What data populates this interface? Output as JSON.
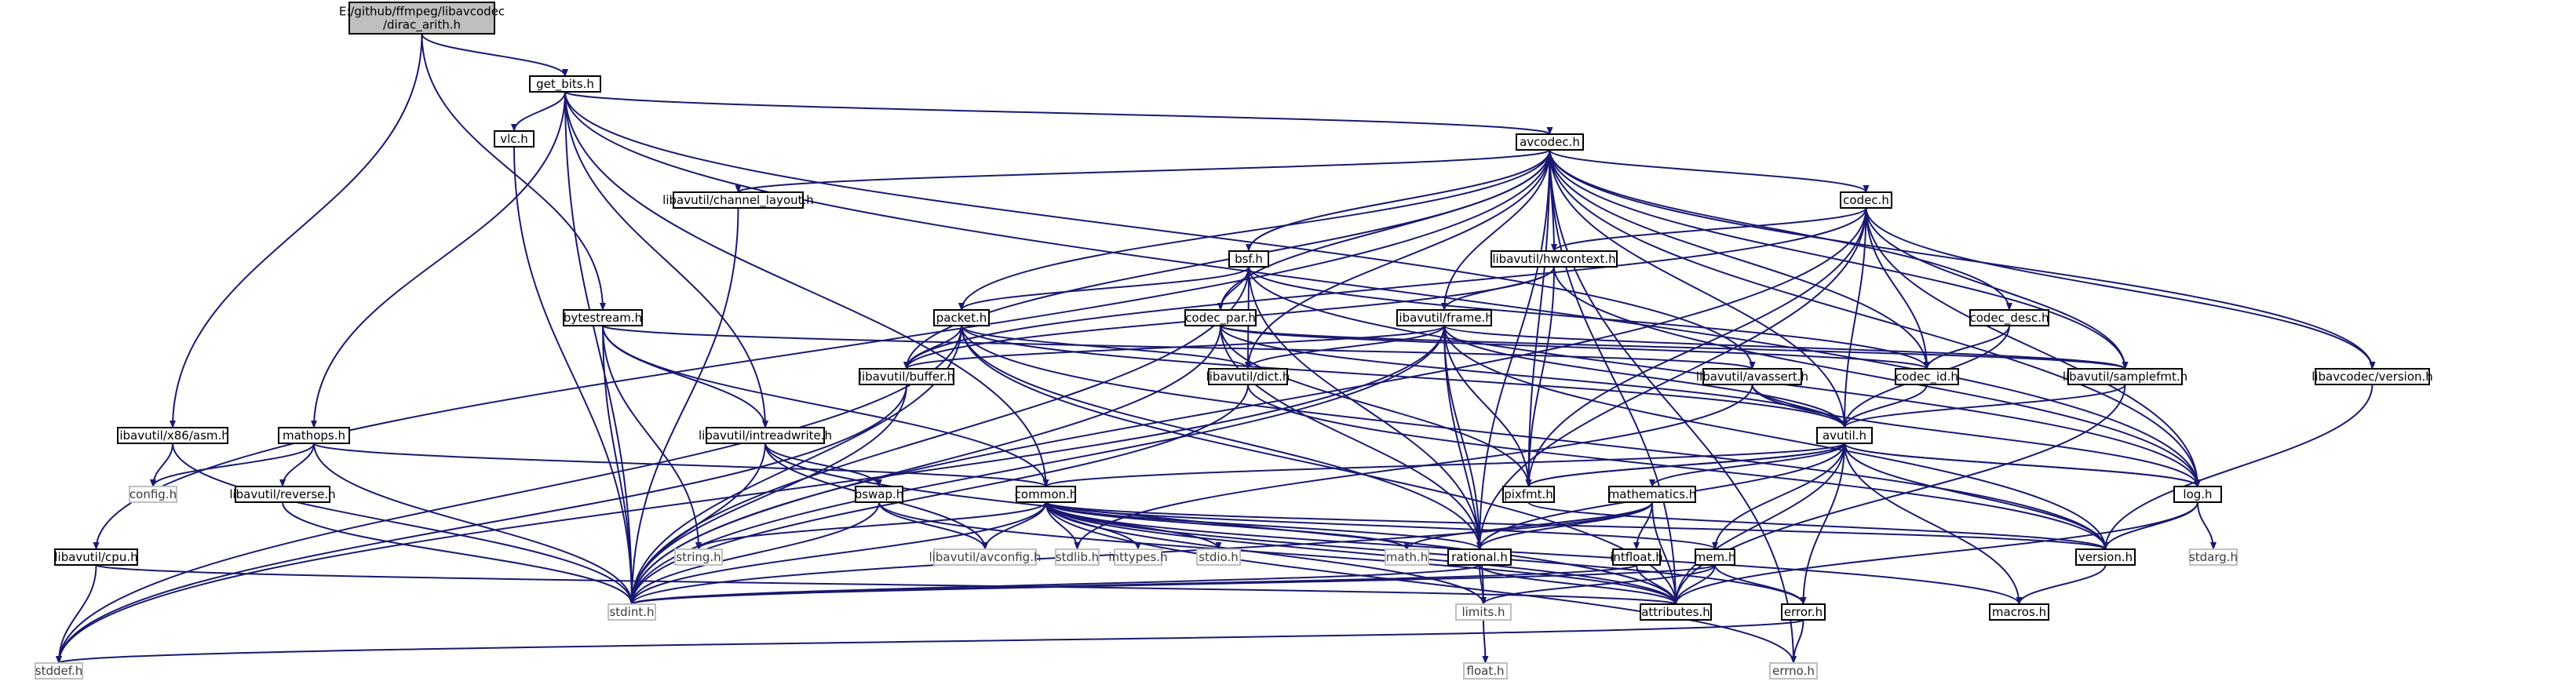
{
  "graph_title": "",
  "colors": {
    "edge": "#191970",
    "root_fill": "#bfbfbf",
    "node_border": "#000000",
    "system_border": "#bfbfbf"
  },
  "nodes": [
    {
      "id": "root",
      "lines": [
        "E:/github/ffmpeg/libavcodec",
        "/dirac_arith.h"
      ],
      "kind": "root"
    },
    {
      "id": "get_bits",
      "lines": [
        "get_bits.h"
      ]
    },
    {
      "id": "asm",
      "lines": [
        "libavutil/x86/asm.h"
      ]
    },
    {
      "id": "bytestream",
      "lines": [
        "bytestream.h"
      ]
    },
    {
      "id": "vlc",
      "lines": [
        "vlc.h"
      ]
    },
    {
      "id": "mathops",
      "lines": [
        "mathops.h"
      ]
    },
    {
      "id": "avcodec",
      "lines": [
        "avcodec.h"
      ]
    },
    {
      "id": "channel_layout",
      "lines": [
        "libavutil/channel_layout.h"
      ]
    },
    {
      "id": "codec",
      "lines": [
        "codec.h"
      ]
    },
    {
      "id": "bsf",
      "lines": [
        "bsf.h"
      ]
    },
    {
      "id": "hwcontext",
      "lines": [
        "libavutil/hwcontext.h"
      ]
    },
    {
      "id": "packet",
      "lines": [
        "packet.h"
      ]
    },
    {
      "id": "codec_par",
      "lines": [
        "codec_par.h"
      ]
    },
    {
      "id": "frame",
      "lines": [
        "libavutil/frame.h"
      ]
    },
    {
      "id": "codec_desc",
      "lines": [
        "codec_desc.h"
      ]
    },
    {
      "id": "buffer",
      "lines": [
        "libavutil/buffer.h"
      ]
    },
    {
      "id": "dict",
      "lines": [
        "libavutil/dict.h"
      ]
    },
    {
      "id": "avassert",
      "lines": [
        "libavutil/avassert.h"
      ]
    },
    {
      "id": "codec_id",
      "lines": [
        "codec_id.h"
      ]
    },
    {
      "id": "samplefmt",
      "lines": [
        "libavutil/samplefmt.h"
      ]
    },
    {
      "id": "lavc_version",
      "lines": [
        "libavcodec/version.h"
      ]
    },
    {
      "id": "intreadwrite",
      "lines": [
        "libavutil/intreadwrite.h"
      ]
    },
    {
      "id": "avutil",
      "lines": [
        "avutil.h"
      ]
    },
    {
      "id": "reverse",
      "lines": [
        "libavutil/reverse.h"
      ]
    },
    {
      "id": "bswap",
      "lines": [
        "bswap.h"
      ]
    },
    {
      "id": "common",
      "lines": [
        "common.h"
      ]
    },
    {
      "id": "pixfmt",
      "lines": [
        "pixfmt.h"
      ]
    },
    {
      "id": "mathematics",
      "lines": [
        "mathematics.h"
      ]
    },
    {
      "id": "log",
      "lines": [
        "log.h"
      ]
    },
    {
      "id": "cpu",
      "lines": [
        "libavutil/cpu.h"
      ]
    },
    {
      "id": "config",
      "lines": [
        "config.h"
      ],
      "kind": "sys"
    },
    {
      "id": "string",
      "lines": [
        "string.h"
      ],
      "kind": "sys"
    },
    {
      "id": "avconfig",
      "lines": [
        "libavutil/avconfig.h"
      ],
      "kind": "sys"
    },
    {
      "id": "stdlib",
      "lines": [
        "stdlib.h"
      ],
      "kind": "sys"
    },
    {
      "id": "inttypes",
      "lines": [
        "inttypes.h"
      ],
      "kind": "sys"
    },
    {
      "id": "stdio",
      "lines": [
        "stdio.h"
      ],
      "kind": "sys"
    },
    {
      "id": "math",
      "lines": [
        "math.h"
      ],
      "kind": "sys"
    },
    {
      "id": "rational",
      "lines": [
        "rational.h"
      ]
    },
    {
      "id": "intfloat",
      "lines": [
        "intfloat.h"
      ]
    },
    {
      "id": "mem",
      "lines": [
        "mem.h"
      ]
    },
    {
      "id": "version",
      "lines": [
        "version.h"
      ]
    },
    {
      "id": "stdarg",
      "lines": [
        "stdarg.h"
      ],
      "kind": "sys"
    },
    {
      "id": "stdint",
      "lines": [
        "stdint.h"
      ],
      "kind": "sys"
    },
    {
      "id": "limits",
      "lines": [
        "limits.h"
      ],
      "kind": "sys"
    },
    {
      "id": "attributes",
      "lines": [
        "attributes.h"
      ]
    },
    {
      "id": "error",
      "lines": [
        "error.h"
      ]
    },
    {
      "id": "macros",
      "lines": [
        "macros.h"
      ]
    },
    {
      "id": "float",
      "lines": [
        "float.h"
      ],
      "kind": "sys"
    },
    {
      "id": "stddef",
      "lines": [
        "stddef.h"
      ],
      "kind": "sys"
    },
    {
      "id": "errno",
      "lines": [
        "errno.h"
      ],
      "kind": "sys"
    }
  ],
  "edges": [
    [
      "root",
      "get_bits"
    ],
    [
      "root",
      "asm"
    ],
    [
      "root",
      "bytestream"
    ],
    [
      "get_bits",
      "vlc"
    ],
    [
      "get_bits",
      "mathops"
    ],
    [
      "get_bits",
      "avcodec"
    ],
    [
      "get_bits",
      "intreadwrite"
    ],
    [
      "get_bits",
      "common"
    ],
    [
      "get_bits",
      "avassert"
    ],
    [
      "get_bits",
      "log"
    ],
    [
      "get_bits",
      "stdint"
    ],
    [
      "asm",
      "config"
    ],
    [
      "asm",
      "stdint"
    ],
    [
      "bytestream",
      "string"
    ],
    [
      "bytestream",
      "intreadwrite"
    ],
    [
      "bytestream",
      "common"
    ],
    [
      "bytestream",
      "avassert"
    ],
    [
      "bytestream",
      "stdint"
    ],
    [
      "vlc",
      "stdint"
    ],
    [
      "mathops",
      "config"
    ],
    [
      "mathops",
      "reverse"
    ],
    [
      "mathops",
      "common"
    ],
    [
      "mathops",
      "stdint"
    ],
    [
      "avcodec",
      "channel_layout"
    ],
    [
      "avcodec",
      "codec"
    ],
    [
      "avcodec",
      "bsf"
    ],
    [
      "avcodec",
      "hwcontext"
    ],
    [
      "avcodec",
      "packet"
    ],
    [
      "avcodec",
      "codec_par"
    ],
    [
      "avcodec",
      "frame"
    ],
    [
      "avcodec",
      "codec_desc"
    ],
    [
      "avcodec",
      "buffer"
    ],
    [
      "avcodec",
      "dict"
    ],
    [
      "avcodec",
      "codec_id"
    ],
    [
      "avcodec",
      "samplefmt"
    ],
    [
      "avcodec",
      "lavc_version"
    ],
    [
      "avcodec",
      "avutil"
    ],
    [
      "avcodec",
      "pixfmt"
    ],
    [
      "avcodec",
      "rational"
    ],
    [
      "avcodec",
      "log"
    ],
    [
      "avcodec",
      "cpu"
    ],
    [
      "avcodec",
      "attributes"
    ],
    [
      "avcodec",
      "errno"
    ],
    [
      "channel_layout",
      "stdint"
    ],
    [
      "codec",
      "hwcontext"
    ],
    [
      "codec",
      "codec_id"
    ],
    [
      "codec",
      "samplefmt"
    ],
    [
      "codec",
      "lavc_version"
    ],
    [
      "codec",
      "avutil"
    ],
    [
      "codec",
      "pixfmt"
    ],
    [
      "codec",
      "log"
    ],
    [
      "codec",
      "rational"
    ],
    [
      "codec",
      "stdint"
    ],
    [
      "codec",
      "buffer"
    ],
    [
      "bsf",
      "packet"
    ],
    [
      "bsf",
      "codec_par"
    ],
    [
      "bsf",
      "codec_id"
    ],
    [
      "bsf",
      "dict"
    ],
    [
      "bsf",
      "log"
    ],
    [
      "bsf",
      "rational"
    ],
    [
      "bsf",
      "stdint"
    ],
    [
      "hwcontext",
      "frame"
    ],
    [
      "hwcontext",
      "pixfmt"
    ],
    [
      "hwcontext",
      "buffer"
    ],
    [
      "hwcontext",
      "log"
    ],
    [
      "packet",
      "buffer"
    ],
    [
      "packet",
      "dict"
    ],
    [
      "packet",
      "attributes"
    ],
    [
      "packet",
      "rational"
    ],
    [
      "packet",
      "version"
    ],
    [
      "packet",
      "stdint"
    ],
    [
      "packet",
      "stddef"
    ],
    [
      "packet",
      "avutil"
    ],
    [
      "codec_par",
      "codec_id"
    ],
    [
      "codec_par",
      "avutil"
    ],
    [
      "codec_par",
      "pixfmt"
    ],
    [
      "codec_par",
      "rational"
    ],
    [
      "codec_par",
      "samplefmt"
    ],
    [
      "codec_par",
      "stdint"
    ],
    [
      "frame",
      "avutil"
    ],
    [
      "frame",
      "buffer"
    ],
    [
      "frame",
      "dict"
    ],
    [
      "frame",
      "rational"
    ],
    [
      "frame",
      "samplefmt"
    ],
    [
      "frame",
      "pixfmt"
    ],
    [
      "frame",
      "version"
    ],
    [
      "frame",
      "stdint"
    ],
    [
      "frame",
      "stddef"
    ],
    [
      "frame",
      "limits"
    ],
    [
      "codec_desc",
      "codec_id"
    ],
    [
      "codec_desc",
      "avutil"
    ],
    [
      "buffer",
      "stdint"
    ],
    [
      "buffer",
      "stddef"
    ],
    [
      "dict",
      "stdint"
    ],
    [
      "dict",
      "version"
    ],
    [
      "avassert",
      "avutil"
    ],
    [
      "avassert",
      "log"
    ],
    [
      "avassert",
      "stdlib"
    ],
    [
      "codec_id",
      "avutil"
    ],
    [
      "samplefmt",
      "avutil"
    ],
    [
      "samplefmt",
      "attributes"
    ],
    [
      "lavc_version",
      "version"
    ],
    [
      "intreadwrite",
      "avconfig"
    ],
    [
      "intreadwrite",
      "attributes"
    ],
    [
      "intreadwrite",
      "bswap"
    ],
    [
      "intreadwrite",
      "stdint"
    ],
    [
      "avutil",
      "common"
    ],
    [
      "avutil",
      "error"
    ],
    [
      "avutil",
      "version"
    ],
    [
      "avutil",
      "macros"
    ],
    [
      "avutil",
      "mathematics"
    ],
    [
      "avutil",
      "rational"
    ],
    [
      "avutil",
      "log"
    ],
    [
      "avutil",
      "pixfmt"
    ],
    [
      "avutil",
      "attributes"
    ],
    [
      "reverse",
      "stdint"
    ],
    [
      "bswap",
      "avconfig"
    ],
    [
      "bswap",
      "stdint"
    ],
    [
      "bswap",
      "attributes"
    ],
    [
      "common",
      "errno"
    ],
    [
      "common",
      "inttypes"
    ],
    [
      "common",
      "limits"
    ],
    [
      "common",
      "math"
    ],
    [
      "common",
      "stdint"
    ],
    [
      "common",
      "stdio"
    ],
    [
      "common",
      "stdlib"
    ],
    [
      "common",
      "string"
    ],
    [
      "common",
      "attributes"
    ],
    [
      "common",
      "macros"
    ],
    [
      "common",
      "version"
    ],
    [
      "common",
      "avconfig"
    ],
    [
      "common",
      "mem"
    ],
    [
      "common",
      "error"
    ],
    [
      "common",
      "rational"
    ],
    [
      "pixfmt",
      "avutil"
    ],
    [
      "pixfmt",
      "version"
    ],
    [
      "mathematics",
      "stdint"
    ],
    [
      "mathematics",
      "math"
    ],
    [
      "mathematics",
      "attributes"
    ],
    [
      "mathematics",
      "rational"
    ],
    [
      "mathematics",
      "intfloat"
    ],
    [
      "log",
      "stdarg"
    ],
    [
      "log",
      "avutil"
    ],
    [
      "log",
      "attributes"
    ],
    [
      "log",
      "version"
    ],
    [
      "cpu",
      "stddef"
    ],
    [
      "cpu",
      "attributes"
    ],
    [
      "rational",
      "stdint"
    ],
    [
      "rational",
      "limits"
    ],
    [
      "rational",
      "attributes"
    ],
    [
      "intfloat",
      "stdint"
    ],
    [
      "intfloat",
      "attributes"
    ],
    [
      "mem",
      "limits"
    ],
    [
      "mem",
      "stdint"
    ],
    [
      "mem",
      "attributes"
    ],
    [
      "mem",
      "error"
    ],
    [
      "mem",
      "avutil"
    ],
    [
      "version",
      "macros"
    ],
    [
      "limits",
      "float"
    ],
    [
      "error",
      "errno"
    ],
    [
      "error",
      "stddef"
    ]
  ]
}
